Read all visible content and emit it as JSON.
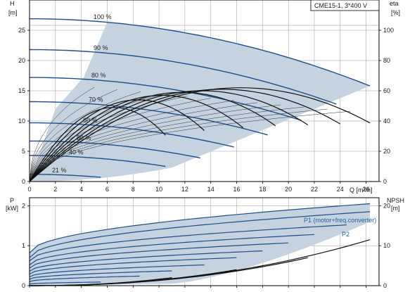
{
  "chart_data": {
    "type": "line",
    "model_label": "CME15-1, 3*400 V",
    "colors": {
      "speed_curve": "#1f4e8c",
      "efficiency_curve": "#111111",
      "operating_area": "#c5d3e1",
      "pump_label": "#1f5f9f",
      "grid": "#9a9a9a"
    },
    "top_panel": {
      "xlabel": "Q [m³/h]",
      "ylabel_left": "H",
      "ylabel_left_unit": "[m]",
      "ylabel_right": "eta",
      "ylabel_right_unit": "[%]",
      "xlim": [
        0,
        27
      ],
      "ylim_left": [
        0,
        30
      ],
      "ylim_right": [
        0,
        120
      ],
      "x_ticks": [
        "0",
        "2",
        "4",
        "6",
        "8",
        "10",
        "12",
        "14",
        "16",
        "18",
        "20",
        "22",
        "24",
        "26"
      ],
      "y_ticks_left": [
        "0",
        "5",
        "10",
        "15",
        "20",
        "25"
      ],
      "y_ticks_right": [
        "0",
        "20",
        "40",
        "60",
        "80",
        "100"
      ],
      "grid": true,
      "operating_area": [
        [
          0,
          0
        ],
        [
          4.2,
          17.3
        ],
        [
          6.0,
          27.0
        ],
        [
          26.3,
          15.8
        ],
        [
          11.0,
          2.3
        ]
      ],
      "speed_curves": [
        {
          "label": "100 %",
          "h0": 26.9,
          "x_end": 26.3,
          "y_end": 15.8
        },
        {
          "label": "90 %",
          "h0": 21.8,
          "x_end": 23.7,
          "y_end": 12.8
        },
        {
          "label": "80 %",
          "h0": 17.2,
          "x_end": 21.0,
          "y_end": 10.1
        },
        {
          "label": "70 %",
          "h0": 13.2,
          "x_end": 18.4,
          "y_end": 7.7
        },
        {
          "label": "60 %",
          "h0": 9.7,
          "x_end": 15.8,
          "y_end": 5.7
        },
        {
          "label": "50 %",
          "h0": 6.7,
          "x_end": 13.2,
          "y_end": 3.9
        },
        {
          "label": "40 %",
          "h0": 4.3,
          "x_end": 10.5,
          "y_end": 2.5
        },
        {
          "label": "21 %",
          "h0": 1.2,
          "x_end": 5.5,
          "y_end": 0.7
        }
      ],
      "efficiency_curves": [
        {
          "x_end": 10.5,
          "eta_peak": 49
        },
        {
          "x_end": 13.5,
          "eta_peak": 54
        },
        {
          "x_end": 16.5,
          "eta_peak": 57
        },
        {
          "x_end": 19.0,
          "eta_peak": 59
        },
        {
          "x_end": 21.5,
          "eta_peak": 60
        },
        {
          "x_end": 24.0,
          "eta_peak": 61
        },
        {
          "x_end": 26.3,
          "eta_peak": 62
        }
      ]
    },
    "bottom_panel": {
      "ylabel_left": "P",
      "ylabel_left_unit": "[kW]",
      "ylabel_right": "NPSH",
      "ylabel_right_unit": "[m]",
      "xlim": [
        0,
        27
      ],
      "ylim_left": [
        0,
        2.2
      ],
      "ylim_right": [
        0,
        22
      ],
      "y_ticks_left": [
        "0",
        "1",
        "2"
      ],
      "y_ticks_right": [
        "0",
        "10",
        "20"
      ],
      "grid": true,
      "series_labels": [
        "P1 (motor+freq.converter)",
        "P2"
      ],
      "operating_area": [
        [
          0,
          0
        ],
        [
          0,
          0.82
        ],
        [
          26.3,
          2.05
        ],
        [
          26.3,
          1.55
        ],
        [
          11.0,
          0.05
        ]
      ],
      "power_curves": [
        {
          "x_end": 26.3,
          "p_start": 0.82,
          "p_end": 2.05
        },
        {
          "x_end": 26.3,
          "p_start": 0.7,
          "p_end": 1.85
        },
        {
          "x_end": 24.5,
          "p_start": 0.62,
          "p_end": 1.52
        },
        {
          "x_end": 22.0,
          "p_start": 0.52,
          "p_end": 1.28
        },
        {
          "x_end": 20.0,
          "p_start": 0.44,
          "p_end": 1.07
        },
        {
          "x_end": 18.0,
          "p_start": 0.36,
          "p_end": 0.87
        },
        {
          "x_end": 16.0,
          "p_start": 0.29,
          "p_end": 0.7
        },
        {
          "x_end": 13.5,
          "p_start": 0.22,
          "p_end": 0.52
        },
        {
          "x_end": 11.0,
          "p_start": 0.16,
          "p_end": 0.37
        },
        {
          "x_end": 8.5,
          "p_start": 0.1,
          "p_end": 0.24
        },
        {
          "x_end": 5.5,
          "p_start": 0.04,
          "p_end": 0.09
        }
      ],
      "npsh_curves": [
        {
          "x_end": 26.3,
          "npsh_end": 11.5
        },
        {
          "x_end": 21.5,
          "npsh_end": 7.0
        },
        {
          "x_end": 16.0,
          "npsh_end": 4.0
        },
        {
          "x_end": 11.0,
          "npsh_end": 2.0
        }
      ]
    }
  }
}
